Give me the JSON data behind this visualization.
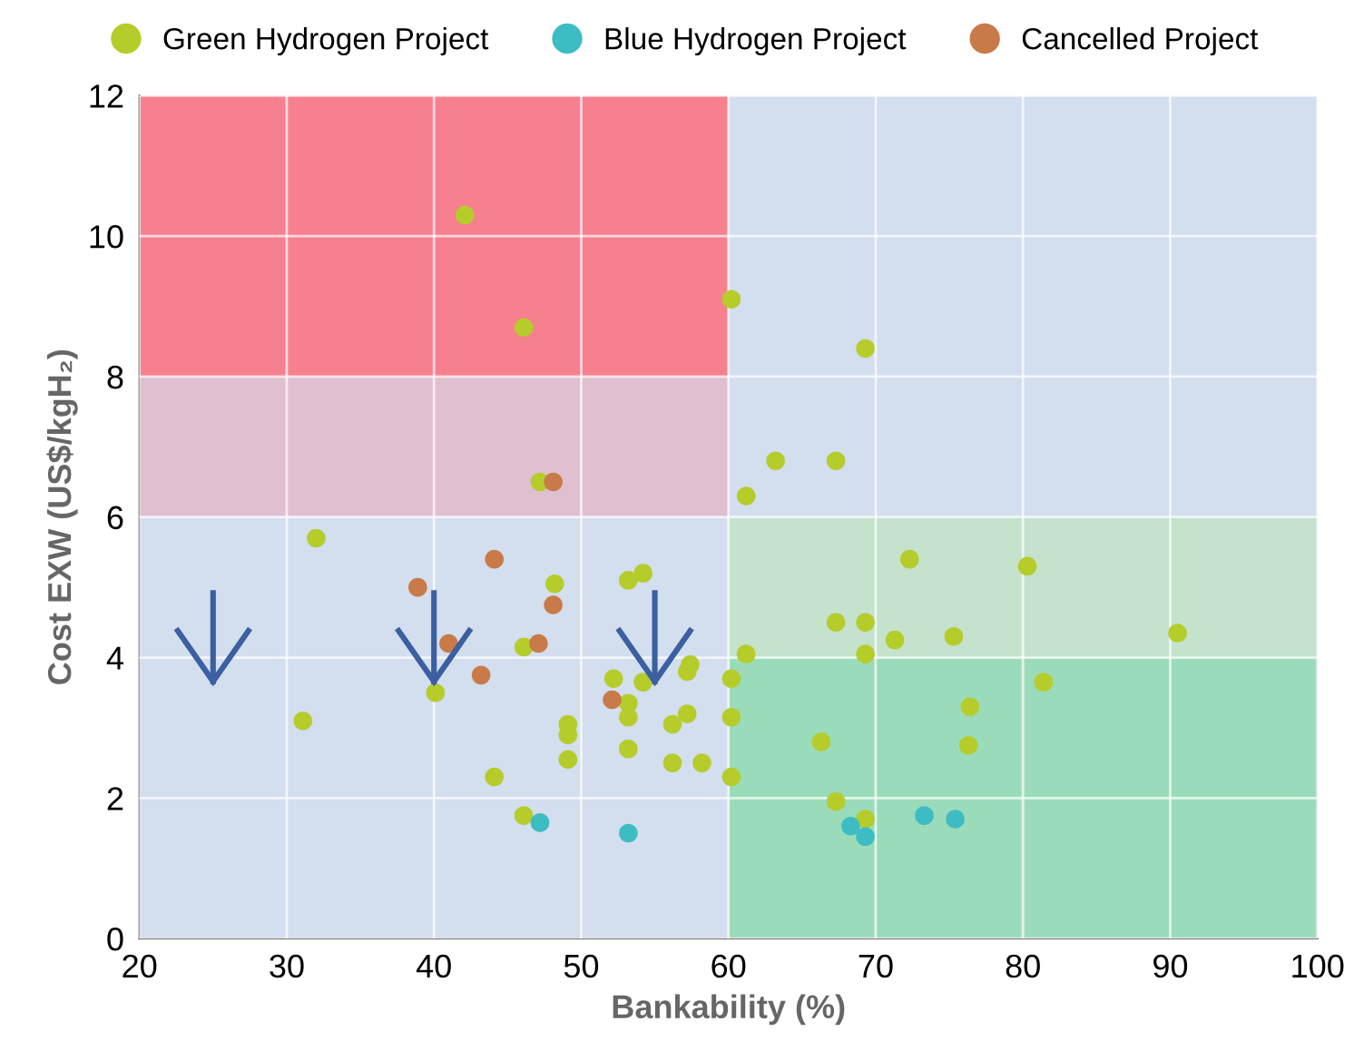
{
  "chart_data": {
    "type": "scatter",
    "xlabel": "Bankability (%)",
    "ylabel": "Cost EXW (US$/kgH₂)",
    "xlim": [
      20,
      100
    ],
    "ylim": [
      0,
      12
    ],
    "xticks": [
      20,
      30,
      40,
      50,
      60,
      70,
      80,
      90,
      100
    ],
    "yticks": [
      0,
      2,
      4,
      6,
      8,
      10,
      12
    ],
    "grid": true,
    "legend": "top",
    "marker": "circle",
    "series": [
      {
        "name": "Green Hydrogen Project",
        "color": "#b5cc2a",
        "x": [
          42.1,
          46.1,
          60.2,
          69.3,
          47.2,
          63.2,
          67.3,
          61.2,
          32.0,
          48.2,
          53.2,
          54.2,
          72.3,
          80.3,
          67.3,
          69.3,
          71.3,
          75.3,
          90.5,
          46.1,
          61.2,
          69.3,
          57.4,
          57.2,
          54.2,
          52.2,
          60.2,
          81.4,
          40.1,
          31.1,
          53.2,
          53.2,
          49.1,
          49.1,
          49.1,
          56.2,
          57.2,
          60.2,
          76.4,
          53.2,
          56.2,
          58.2,
          60.2,
          44.1,
          46.1,
          66.3,
          76.3,
          67.3,
          69.3
        ],
        "values": [
          10.3,
          8.7,
          9.1,
          8.4,
          6.5,
          6.8,
          6.8,
          6.3,
          5.7,
          5.05,
          5.1,
          5.2,
          5.4,
          5.3,
          4.5,
          4.5,
          4.25,
          4.3,
          4.35,
          4.15,
          4.05,
          4.05,
          3.9,
          3.8,
          3.65,
          3.7,
          3.7,
          3.65,
          3.5,
          3.1,
          3.35,
          3.15,
          3.05,
          2.9,
          2.55,
          3.05,
          3.2,
          3.15,
          3.3,
          2.7,
          2.5,
          2.5,
          2.3,
          2.3,
          1.75,
          2.8,
          2.75,
          1.95,
          1.7
        ]
      },
      {
        "name": "Blue Hydrogen Project",
        "color": "#3dbcc4",
        "x": [
          47.2,
          53.2,
          68.3,
          69.3,
          73.3,
          75.4
        ],
        "values": [
          1.65,
          1.5,
          1.6,
          1.45,
          1.75,
          1.7
        ]
      },
      {
        "name": "Cancelled Project",
        "color": "#c87a48",
        "x": [
          48.1,
          44.1,
          38.9,
          48.1,
          41.0,
          47.1,
          43.2,
          52.1
        ],
        "values": [
          6.5,
          5.4,
          5.0,
          4.75,
          4.2,
          4.2,
          3.75,
          3.4
        ]
      }
    ]
  }
}
